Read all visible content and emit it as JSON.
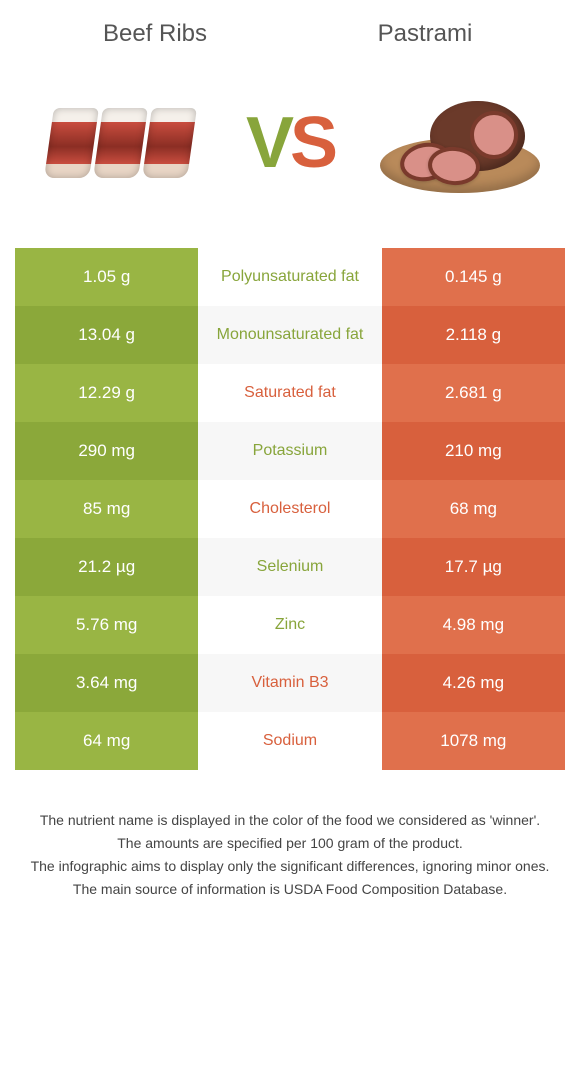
{
  "titles": {
    "left": "Beef Ribs",
    "right": "Pastrami"
  },
  "vs": {
    "v": "V",
    "s": "S"
  },
  "colors": {
    "left_a": "#99b544",
    "left_b": "#8ba83a",
    "right_a": "#e0704c",
    "right_b": "#d8603d",
    "mid_a": "#ffffff",
    "mid_b": "#f7f7f7",
    "winner_left": "#88a53b",
    "winner_right": "#d8603d"
  },
  "rows": [
    {
      "left": "1.05 g",
      "label": "Polyunsaturated fat",
      "right": "0.145 g",
      "winner": "left"
    },
    {
      "left": "13.04 g",
      "label": "Monounsaturated fat",
      "right": "2.118 g",
      "winner": "left"
    },
    {
      "left": "12.29 g",
      "label": "Saturated fat",
      "right": "2.681 g",
      "winner": "right"
    },
    {
      "left": "290 mg",
      "label": "Potassium",
      "right": "210 mg",
      "winner": "left"
    },
    {
      "left": "85 mg",
      "label": "Cholesterol",
      "right": "68 mg",
      "winner": "right"
    },
    {
      "left": "21.2 µg",
      "label": "Selenium",
      "right": "17.7 µg",
      "winner": "left"
    },
    {
      "left": "5.76 mg",
      "label": "Zinc",
      "right": "4.98 mg",
      "winner": "left"
    },
    {
      "left": "3.64 mg",
      "label": "Vitamin B3",
      "right": "4.26 mg",
      "winner": "right"
    },
    {
      "left": "64 mg",
      "label": "Sodium",
      "right": "1078 mg",
      "winner": "right"
    }
  ],
  "footer": [
    "The nutrient name is displayed in the color of the food we considered as 'winner'.",
    "The amounts are specified per 100 gram of the product.",
    "The infographic aims to display only the significant differences, ignoring minor ones.",
    "The main source of information is USDA Food Composition Database."
  ]
}
